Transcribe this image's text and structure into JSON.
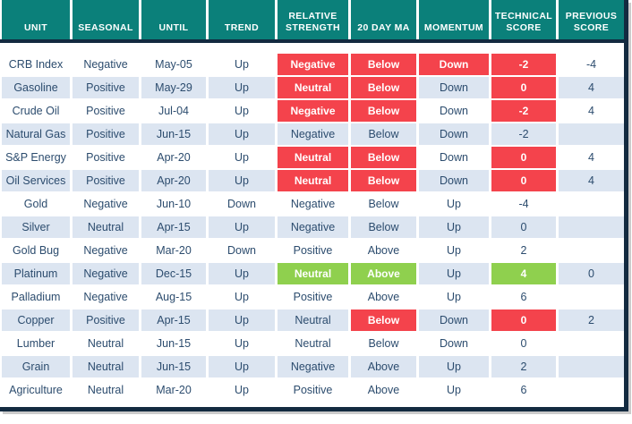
{
  "title": "Commodity technical score table",
  "colors": {
    "header_teal": "#0B807A",
    "frame_navy": "#132A40",
    "highlight_red": "#F4434C",
    "highlight_green": "#8FD04E",
    "row_alt_blue": "#DCE5F1",
    "text_navy": "#2C4C6E"
  },
  "table": {
    "headers": [
      {
        "label": "UNIT"
      },
      {
        "label": "SEASONAL"
      },
      {
        "label": "UNTIL"
      },
      {
        "label": "TREND"
      },
      {
        "label": "RELATIVE STRENGTH"
      },
      {
        "label": "20 DAY MA"
      },
      {
        "label": "MOMENTUM"
      },
      {
        "label": "TECHNICAL SCORE"
      },
      {
        "label": "PREVIOUS SCORE"
      }
    ],
    "rows": [
      {
        "cells": [
          {
            "t": "CRB Index"
          },
          {
            "t": "Negative"
          },
          {
            "t": "May-05"
          },
          {
            "t": "Up"
          },
          {
            "t": "Negative",
            "h": "red"
          },
          {
            "t": "Below",
            "h": "red"
          },
          {
            "t": "Down",
            "h": "red"
          },
          {
            "t": "-2",
            "h": "red"
          },
          {
            "t": "-4"
          }
        ]
      },
      {
        "cells": [
          {
            "t": "Gasoline"
          },
          {
            "t": "Positive"
          },
          {
            "t": "May-29"
          },
          {
            "t": "Up"
          },
          {
            "t": "Neutral",
            "h": "red"
          },
          {
            "t": "Below",
            "h": "red"
          },
          {
            "t": "Down"
          },
          {
            "t": "0",
            "h": "red"
          },
          {
            "t": "4"
          }
        ]
      },
      {
        "cells": [
          {
            "t": "Crude Oil"
          },
          {
            "t": "Positive"
          },
          {
            "t": "Jul-04"
          },
          {
            "t": "Up"
          },
          {
            "t": "Negative",
            "h": "red"
          },
          {
            "t": "Below",
            "h": "red"
          },
          {
            "t": "Down"
          },
          {
            "t": "-2",
            "h": "red"
          },
          {
            "t": "4"
          }
        ]
      },
      {
        "cells": [
          {
            "t": "Natural Gas"
          },
          {
            "t": "Positive"
          },
          {
            "t": "Jun-15"
          },
          {
            "t": "Up"
          },
          {
            "t": "Negative"
          },
          {
            "t": "Below"
          },
          {
            "t": "Down"
          },
          {
            "t": "-2"
          },
          {
            "t": ""
          }
        ]
      },
      {
        "cells": [
          {
            "t": "S&P Energy"
          },
          {
            "t": "Positive"
          },
          {
            "t": "Apr-20"
          },
          {
            "t": "Up"
          },
          {
            "t": "Neutral",
            "h": "red"
          },
          {
            "t": "Below",
            "h": "red"
          },
          {
            "t": "Down"
          },
          {
            "t": "0",
            "h": "red"
          },
          {
            "t": "4"
          }
        ]
      },
      {
        "cells": [
          {
            "t": "Oil Services"
          },
          {
            "t": "Positive"
          },
          {
            "t": "Apr-20"
          },
          {
            "t": "Up"
          },
          {
            "t": "Neutral",
            "h": "red"
          },
          {
            "t": "Below",
            "h": "red"
          },
          {
            "t": "Down"
          },
          {
            "t": "0",
            "h": "red"
          },
          {
            "t": "4"
          }
        ]
      },
      {
        "cells": [
          {
            "t": "Gold"
          },
          {
            "t": "Negative"
          },
          {
            "t": "Jun-10"
          },
          {
            "t": "Down"
          },
          {
            "t": "Negative"
          },
          {
            "t": "Below"
          },
          {
            "t": "Up"
          },
          {
            "t": "-4"
          },
          {
            "t": ""
          }
        ]
      },
      {
        "cells": [
          {
            "t": "Silver"
          },
          {
            "t": "Neutral"
          },
          {
            "t": "Apr-15"
          },
          {
            "t": "Up"
          },
          {
            "t": "Negative"
          },
          {
            "t": "Below"
          },
          {
            "t": "Up"
          },
          {
            "t": "0"
          },
          {
            "t": ""
          }
        ]
      },
      {
        "cells": [
          {
            "t": "Gold Bug"
          },
          {
            "t": "Negative"
          },
          {
            "t": "Mar-20"
          },
          {
            "t": "Down"
          },
          {
            "t": "Positive"
          },
          {
            "t": "Above"
          },
          {
            "t": "Up"
          },
          {
            "t": "2"
          },
          {
            "t": ""
          }
        ]
      },
      {
        "cells": [
          {
            "t": "Platinum"
          },
          {
            "t": "Negative"
          },
          {
            "t": "Dec-15"
          },
          {
            "t": "Up"
          },
          {
            "t": "Neutral",
            "h": "green"
          },
          {
            "t": "Above",
            "h": "green"
          },
          {
            "t": "Up"
          },
          {
            "t": "4",
            "h": "green"
          },
          {
            "t": "0"
          }
        ]
      },
      {
        "cells": [
          {
            "t": "Palladium"
          },
          {
            "t": "Negative"
          },
          {
            "t": "Aug-15"
          },
          {
            "t": "Up"
          },
          {
            "t": "Positive"
          },
          {
            "t": "Above"
          },
          {
            "t": "Up"
          },
          {
            "t": "6"
          },
          {
            "t": ""
          }
        ]
      },
      {
        "cells": [
          {
            "t": "Copper"
          },
          {
            "t": "Positive"
          },
          {
            "t": "Apr-15"
          },
          {
            "t": "Up"
          },
          {
            "t": "Neutral"
          },
          {
            "t": "Below",
            "h": "red"
          },
          {
            "t": "Down"
          },
          {
            "t": "0",
            "h": "red"
          },
          {
            "t": "2"
          }
        ]
      },
      {
        "cells": [
          {
            "t": "Lumber"
          },
          {
            "t": "Neutral"
          },
          {
            "t": "Jun-15"
          },
          {
            "t": "Up"
          },
          {
            "t": "Neutral"
          },
          {
            "t": "Below"
          },
          {
            "t": "Down"
          },
          {
            "t": "0"
          },
          {
            "t": ""
          }
        ]
      },
      {
        "cells": [
          {
            "t": "Grain"
          },
          {
            "t": "Neutral"
          },
          {
            "t": "Jun-15"
          },
          {
            "t": "Up"
          },
          {
            "t": "Negative"
          },
          {
            "t": "Above"
          },
          {
            "t": "Up"
          },
          {
            "t": "2"
          },
          {
            "t": ""
          }
        ]
      },
      {
        "cells": [
          {
            "t": "Agriculture"
          },
          {
            "t": "Neutral"
          },
          {
            "t": "Mar-20"
          },
          {
            "t": "Up"
          },
          {
            "t": "Positive"
          },
          {
            "t": "Above"
          },
          {
            "t": "Up"
          },
          {
            "t": "6"
          },
          {
            "t": ""
          }
        ]
      }
    ]
  },
  "chart_data": {
    "type": "table",
    "title": "Commodity technical score table",
    "columns": [
      "UNIT",
      "SEASONAL",
      "UNTIL",
      "TREND",
      "RELATIVE STRENGTH",
      "20 DAY MA",
      "MOMENTUM",
      "TECHNICAL SCORE",
      "PREVIOUS SCORE"
    ],
    "rows": [
      [
        "CRB Index",
        "Negative",
        "May-05",
        "Up",
        "Negative",
        "Below",
        "Down",
        -2,
        -4
      ],
      [
        "Gasoline",
        "Positive",
        "May-29",
        "Up",
        "Neutral",
        "Below",
        "Down",
        0,
        4
      ],
      [
        "Crude Oil",
        "Positive",
        "Jul-04",
        "Up",
        "Negative",
        "Below",
        "Down",
        -2,
        4
      ],
      [
        "Natural Gas",
        "Positive",
        "Jun-15",
        "Up",
        "Negative",
        "Below",
        "Down",
        -2,
        null
      ],
      [
        "S&P Energy",
        "Positive",
        "Apr-20",
        "Up",
        "Neutral",
        "Below",
        "Down",
        0,
        4
      ],
      [
        "Oil Services",
        "Positive",
        "Apr-20",
        "Up",
        "Neutral",
        "Below",
        "Down",
        0,
        4
      ],
      [
        "Gold",
        "Negative",
        "Jun-10",
        "Down",
        "Negative",
        "Below",
        "Up",
        -4,
        null
      ],
      [
        "Silver",
        "Neutral",
        "Apr-15",
        "Up",
        "Negative",
        "Below",
        "Up",
        0,
        null
      ],
      [
        "Gold Bug",
        "Negative",
        "Mar-20",
        "Down",
        "Positive",
        "Above",
        "Up",
        2,
        null
      ],
      [
        "Platinum",
        "Negative",
        "Dec-15",
        "Up",
        "Neutral",
        "Above",
        "Up",
        4,
        0
      ],
      [
        "Palladium",
        "Negative",
        "Aug-15",
        "Up",
        "Positive",
        "Above",
        "Up",
        6,
        null
      ],
      [
        "Copper",
        "Positive",
        "Apr-15",
        "Up",
        "Neutral",
        "Below",
        "Down",
        0,
        2
      ],
      [
        "Lumber",
        "Neutral",
        "Jun-15",
        "Up",
        "Neutral",
        "Below",
        "Down",
        0,
        null
      ],
      [
        "Grain",
        "Neutral",
        "Jun-15",
        "Up",
        "Negative",
        "Above",
        "Up",
        2,
        null
      ],
      [
        "Agriculture",
        "Neutral",
        "Mar-20",
        "Up",
        "Positive",
        "Above",
        "Up",
        6,
        null
      ]
    ],
    "highlights": {
      "red_cells": "negative-condition cells (white bold text on red)",
      "green_cells": "positive-condition cells (white bold text on green)"
    },
    "layout": {
      "header_style": "teal background, white bold caps, bottom-aligned",
      "row_striping": "odd rows white, even rows light blue",
      "frame": "dark navy line under header, dark navy right and bottom borders with gray drop shadow"
    }
  }
}
